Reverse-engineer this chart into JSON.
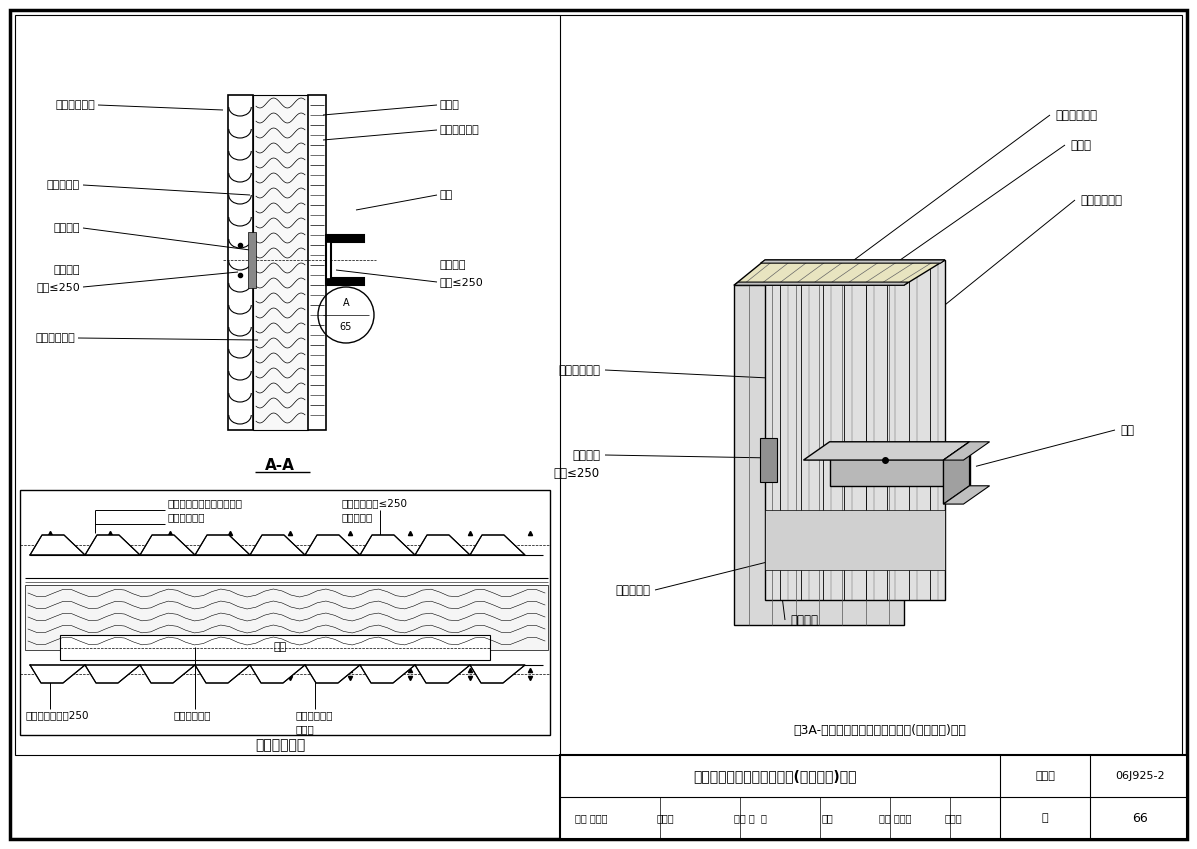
{
  "bg_color": "#ffffff",
  "line_color": "#000000",
  "title_main": "双层压型钢板复合保温墙体(竖向排板)构造",
  "title_3A": "墙3A-双层压型钢板复合保温墙体(竖向排板)构造",
  "figure_number": "06J925-2",
  "page_num": "66",
  "section_AA": "A-A",
  "section_bottom_title": "墙体横向连接",
  "table_title": "双层压型钢板复合保温墙体(竖向排板)构造",
  "fig_col": "图集号",
  "page_col": "页",
  "review": "审核 蔡昭昀",
  "check": "校对 林  莉",
  "design": "设计 李晓媛",
  "AA_labels_left": [
    "外侧压型钢板",
    "防水透汽层",
    "隔热垫片",
    "自攻螺钉\n间距≤250",
    "玻璃棉保温层"
  ],
  "AA_labels_right": [
    "隔汽层",
    "内侧压型钢板",
    "墙梁",
    "自攻螺钉\n间距≤250"
  ],
  "bottom_labels_top": [
    "搭接处左右各打一自攻螺钉",
    "外侧压型钢板",
    "自攻螺钉间距≤250",
    "防水透汽层"
  ],
  "bottom_labels_bot": [
    "拉铆钉纵向间距250",
    "玻璃棉保温层",
    "内侧压型钢板",
    "隔汽层"
  ],
  "beam_label": "墙梁",
  "labels_3d_right": [
    "玻璃棉保温层",
    "隔汽层",
    "内侧压型钢板",
    "墙梁"
  ],
  "labels_3d_left": [
    "外侧压型钢板",
    "自攻螺钉\n间距≤250",
    "防水透汽层",
    "隔热垫片"
  ]
}
